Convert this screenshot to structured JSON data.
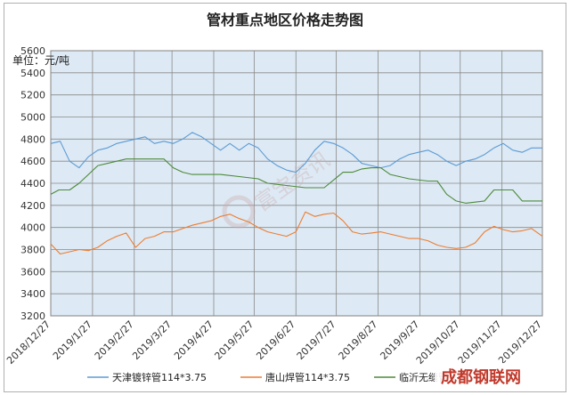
{
  "chart_data": {
    "type": "line",
    "title": "管材重点地区价格走势图",
    "unit_label": "单位：元/吨",
    "ylim": [
      3200,
      5600
    ],
    "yticks": [
      3200,
      3400,
      3600,
      3800,
      4000,
      4200,
      4400,
      4600,
      4800,
      5000,
      5200,
      5400,
      5600
    ],
    "x_range": [
      "2018/12/27",
      "2019/12/27"
    ],
    "xticks": [
      "2018/12/27",
      "2019/1/27",
      "2019/2/27",
      "2019/3/27",
      "2019/4/27",
      "2019/5/27",
      "2019/6/27",
      "2019/7/27",
      "2019/8/27",
      "2019/9/27",
      "2019/10/27",
      "2019/11/27",
      "2019/12/27"
    ],
    "grid": true,
    "legend_position": "bottom",
    "series": [
      {
        "name": "天津镀锌管114*3.75",
        "color": "#5b9bd5",
        "points": [
          [
            "2018/12/27",
            4760
          ],
          [
            "2019/1/3",
            4780
          ],
          [
            "2019/1/10",
            4600
          ],
          [
            "2019/1/17",
            4540
          ],
          [
            "2019/1/24",
            4640
          ],
          [
            "2019/1/31",
            4700
          ],
          [
            "2019/2/7",
            4720
          ],
          [
            "2019/2/14",
            4760
          ],
          [
            "2019/2/21",
            4780
          ],
          [
            "2019/2/28",
            4800
          ],
          [
            "2019/3/7",
            4820
          ],
          [
            "2019/3/14",
            4760
          ],
          [
            "2019/3/21",
            4780
          ],
          [
            "2019/3/28",
            4760
          ],
          [
            "2019/4/4",
            4800
          ],
          [
            "2019/4/11",
            4860
          ],
          [
            "2019/4/18",
            4820
          ],
          [
            "2019/4/25",
            4760
          ],
          [
            "2019/5/2",
            4700
          ],
          [
            "2019/5/9",
            4760
          ],
          [
            "2019/5/16",
            4700
          ],
          [
            "2019/5/23",
            4760
          ],
          [
            "2019/5/30",
            4720
          ],
          [
            "2019/6/6",
            4620
          ],
          [
            "2019/6/13",
            4560
          ],
          [
            "2019/6/20",
            4520
          ],
          [
            "2019/6/27",
            4500
          ],
          [
            "2019/7/4",
            4580
          ],
          [
            "2019/7/11",
            4700
          ],
          [
            "2019/7/18",
            4780
          ],
          [
            "2019/7/25",
            4760
          ],
          [
            "2019/8/1",
            4720
          ],
          [
            "2019/8/8",
            4660
          ],
          [
            "2019/8/15",
            4580
          ],
          [
            "2019/8/22",
            4560
          ],
          [
            "2019/8/29",
            4540
          ],
          [
            "2019/9/5",
            4560
          ],
          [
            "2019/9/12",
            4620
          ],
          [
            "2019/9/19",
            4660
          ],
          [
            "2019/9/26",
            4680
          ],
          [
            "2019/10/3",
            4700
          ],
          [
            "2019/10/10",
            4660
          ],
          [
            "2019/10/17",
            4600
          ],
          [
            "2019/10/24",
            4560
          ],
          [
            "2019/10/31",
            4600
          ],
          [
            "2019/11/7",
            4620
          ],
          [
            "2019/11/14",
            4660
          ],
          [
            "2019/11/21",
            4720
          ],
          [
            "2019/11/28",
            4760
          ],
          [
            "2019/12/5",
            4700
          ],
          [
            "2019/12/12",
            4680
          ],
          [
            "2019/12/19",
            4720
          ],
          [
            "2019/12/27",
            4720
          ]
        ]
      },
      {
        "name": "唐山焊管114*3.75",
        "color": "#ed7d31",
        "points": [
          [
            "2018/12/27",
            3850
          ],
          [
            "2019/1/3",
            3760
          ],
          [
            "2019/1/10",
            3780
          ],
          [
            "2019/1/17",
            3800
          ],
          [
            "2019/1/24",
            3790
          ],
          [
            "2019/1/31",
            3820
          ],
          [
            "2019/2/7",
            3880
          ],
          [
            "2019/2/14",
            3920
          ],
          [
            "2019/2/21",
            3950
          ],
          [
            "2019/2/28",
            3820
          ],
          [
            "2019/3/7",
            3900
          ],
          [
            "2019/3/14",
            3920
          ],
          [
            "2019/3/21",
            3960
          ],
          [
            "2019/3/28",
            3960
          ],
          [
            "2019/4/4",
            3990
          ],
          [
            "2019/4/11",
            4020
          ],
          [
            "2019/4/18",
            4040
          ],
          [
            "2019/4/25",
            4060
          ],
          [
            "2019/5/2",
            4100
          ],
          [
            "2019/5/9",
            4120
          ],
          [
            "2019/5/16",
            4080
          ],
          [
            "2019/5/23",
            4050
          ],
          [
            "2019/5/30",
            4000
          ],
          [
            "2019/6/6",
            3960
          ],
          [
            "2019/6/13",
            3940
          ],
          [
            "2019/6/20",
            3920
          ],
          [
            "2019/6/27",
            3960
          ],
          [
            "2019/7/4",
            4140
          ],
          [
            "2019/7/11",
            4100
          ],
          [
            "2019/7/18",
            4120
          ],
          [
            "2019/7/25",
            4130
          ],
          [
            "2019/8/1",
            4060
          ],
          [
            "2019/8/8",
            3960
          ],
          [
            "2019/8/15",
            3940
          ],
          [
            "2019/8/22",
            3950
          ],
          [
            "2019/8/29",
            3960
          ],
          [
            "2019/9/5",
            3940
          ],
          [
            "2019/9/12",
            3920
          ],
          [
            "2019/9/19",
            3900
          ],
          [
            "2019/9/26",
            3900
          ],
          [
            "2019/10/3",
            3880
          ],
          [
            "2019/10/10",
            3840
          ],
          [
            "2019/10/17",
            3820
          ],
          [
            "2019/10/24",
            3810
          ],
          [
            "2019/10/31",
            3820
          ],
          [
            "2019/11/7",
            3860
          ],
          [
            "2019/11/14",
            3960
          ],
          [
            "2019/11/21",
            4010
          ],
          [
            "2019/11/28",
            3980
          ],
          [
            "2019/12/5",
            3960
          ],
          [
            "2019/12/12",
            3970
          ],
          [
            "2019/12/19",
            3990
          ],
          [
            "2019/12/27",
            3920
          ]
        ]
      },
      {
        "name": "临沂无缝管",
        "color": "#4d8a3a",
        "points": [
          [
            "2018/12/27",
            4300
          ],
          [
            "2019/1/2",
            4340
          ],
          [
            "2019/1/10",
            4340
          ],
          [
            "2019/1/17",
            4400
          ],
          [
            "2019/1/24",
            4480
          ],
          [
            "2019/1/31",
            4560
          ],
          [
            "2019/2/7",
            4580
          ],
          [
            "2019/2/14",
            4600
          ],
          [
            "2019/2/21",
            4620
          ],
          [
            "2019/2/28",
            4620
          ],
          [
            "2019/3/14",
            4620
          ],
          [
            "2019/3/21",
            4620
          ],
          [
            "2019/3/28",
            4540
          ],
          [
            "2019/4/4",
            4500
          ],
          [
            "2019/4/11",
            4480
          ],
          [
            "2019/5/2",
            4480
          ],
          [
            "2019/5/16",
            4460
          ],
          [
            "2019/5/30",
            4440
          ],
          [
            "2019/6/6",
            4400
          ],
          [
            "2019/6/20",
            4380
          ],
          [
            "2019/7/4",
            4360
          ],
          [
            "2019/7/18",
            4360
          ],
          [
            "2019/8/1",
            4500
          ],
          [
            "2019/8/8",
            4500
          ],
          [
            "2019/8/15",
            4530
          ],
          [
            "2019/8/22",
            4540
          ],
          [
            "2019/8/29",
            4540
          ],
          [
            "2019/9/5",
            4480
          ],
          [
            "2019/9/19",
            4440
          ],
          [
            "2019/10/3",
            4420
          ],
          [
            "2019/10/10",
            4420
          ],
          [
            "2019/10/17",
            4300
          ],
          [
            "2019/10/24",
            4240
          ],
          [
            "2019/10/31",
            4220
          ],
          [
            "2019/11/14",
            4240
          ],
          [
            "2019/11/21",
            4340
          ],
          [
            "2019/12/5",
            4340
          ],
          [
            "2019/12/12",
            4240
          ],
          [
            "2019/12/19",
            4240
          ],
          [
            "2019/12/27",
            4240
          ]
        ]
      }
    ]
  }
}
